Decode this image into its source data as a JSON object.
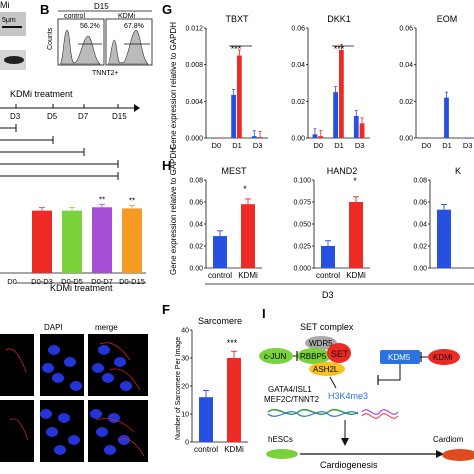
{
  "panels": {
    "A_label_partial": "Mi",
    "A_scale": "5μm",
    "B": {
      "letter": "B",
      "title": "D15",
      "ctrl": "control",
      "ctrl_pct": "56.2%",
      "kdmi": "KDMi",
      "kdmi_pct": "67.8%",
      "ylabel": "Counts",
      "xlabel": "TNNT2+"
    },
    "timeline": {
      "title": "KDMi treatment",
      "ticks": [
        "D3",
        "D5",
        "D7",
        "D15"
      ]
    },
    "barsC": {
      "xlabels": [
        "D0",
        "D0-D3",
        "D0-D5",
        "D0-D7",
        "D0-D15"
      ],
      "xlabel": "KDMi treatment",
      "sig": [
        "",
        "",
        "",
        "**",
        "**"
      ]
    },
    "E": {
      "dapi": "DAPI",
      "merge": "merge"
    },
    "F": {
      "letter": "F",
      "ylabel": "Number of Sarcomere Per Image",
      "xlabels": [
        "control",
        "KDMi"
      ],
      "sig": "***"
    },
    "G": {
      "letter": "G",
      "ylabel": "Gene expression relative to GAPDH",
      "genes": [
        "TBXT",
        "DKK1",
        "EOM"
      ],
      "xticks": [
        "D0",
        "D1",
        "D3"
      ]
    },
    "H": {
      "letter": "H",
      "ylabel": "Gene expression relative to GAPDH",
      "genes": [
        "MEST",
        "HAND2",
        "K"
      ],
      "xticks": [
        "control",
        "KDMi"
      ],
      "footer": "D3"
    },
    "I": {
      "letter": "I",
      "set_complex": "SET complex",
      "wdr5": "WDR5",
      "rbbp5": "RBBP5",
      "set": "SET",
      "ash2l": "ASH2L",
      "cjun": "c-JUN",
      "kdm5": "KDM5",
      "kdmi": "KDMi",
      "genes": "GATA4/ISL1 MEF2C/TNNT2",
      "mark": "H3K4me3",
      "hesc": "hESCs",
      "cardio": "Cardiogenesis",
      "cardiom": "Cardiom"
    }
  },
  "chart_data": [
    {
      "type": "bar",
      "title": "TBXT",
      "categories": [
        "D0",
        "D1",
        "D3"
      ],
      "series": [
        {
          "name": "control",
          "values": [
            0,
            0.0047,
            0.0002
          ]
        },
        {
          "name": "KDMi",
          "values": [
            0,
            0.009,
            0.0001
          ]
        }
      ],
      "ylim": [
        0,
        0.012
      ],
      "yticks": [
        "0.000",
        "0.004",
        "0.008",
        "0.012"
      ],
      "sig": "***"
    },
    {
      "type": "bar",
      "title": "DKK1",
      "categories": [
        "D0",
        "D1",
        "D3"
      ],
      "series": [
        {
          "name": "control",
          "values": [
            0.002,
            0.025,
            0.012
          ]
        },
        {
          "name": "KDMi",
          "values": [
            0.001,
            0.048,
            0.008
          ]
        }
      ],
      "ylim": [
        0,
        0.06
      ],
      "yticks": [
        "0.00",
        "0.02",
        "0.04",
        "0.06"
      ],
      "sig": "***"
    },
    {
      "type": "bar",
      "title": "EOM",
      "categories": [
        "D0",
        "D1",
        "D3"
      ],
      "series": [
        {
          "name": "control",
          "values": [
            0,
            0.022,
            0
          ]
        }
      ],
      "ylim": [
        0,
        0.06
      ],
      "yticks": [
        "0.00",
        "0.02",
        "0.04",
        "0.06"
      ]
    },
    {
      "type": "bar",
      "title": "MEST",
      "categories": [
        "control",
        "KDMi"
      ],
      "values": [
        0.029,
        0.058
      ],
      "ylim": [
        0,
        0.08
      ],
      "yticks": [
        "0.00",
        "0.02",
        "0.04",
        "0.06",
        "0.08"
      ],
      "sig": "*"
    },
    {
      "type": "bar",
      "title": "HAND2",
      "categories": [
        "control",
        "KDMi"
      ],
      "values": [
        0.025,
        0.075
      ],
      "ylim": [
        0,
        0.1
      ],
      "yticks": [
        "0.000",
        "0.025",
        "0.050",
        "0.075",
        "0.100"
      ],
      "sig": "*"
    },
    {
      "type": "bar",
      "title": "K",
      "categories": [
        "control",
        "KDMi"
      ],
      "values": [
        0.053,
        0
      ],
      "ylim": [
        0,
        0.08
      ],
      "yticks": [
        "0.00",
        "0.02",
        "0.04",
        "0.06",
        "0.08"
      ]
    },
    {
      "type": "bar",
      "title": "Sarcomere",
      "categories": [
        "control",
        "KDMi"
      ],
      "values": [
        16,
        30
      ],
      "ylim": [
        0,
        40
      ],
      "yticks": [
        "0",
        "10",
        "20",
        "30",
        "40"
      ],
      "sig": "***"
    },
    {
      "type": "bar",
      "title": "TNNT2 differentiation",
      "categories": [
        "D0",
        "D0-D3",
        "D0-D5",
        "D0-D7",
        "D0-D15"
      ],
      "values": [
        55,
        55,
        55,
        58,
        57
      ],
      "ylim": [
        0,
        60
      ]
    }
  ],
  "colors": {
    "blue": "#2850e0",
    "red": "#ee2a24",
    "green": "#7ad23a",
    "purple": "#a64fd6",
    "orange": "#f79a22",
    "dapi": "#2335d8"
  }
}
